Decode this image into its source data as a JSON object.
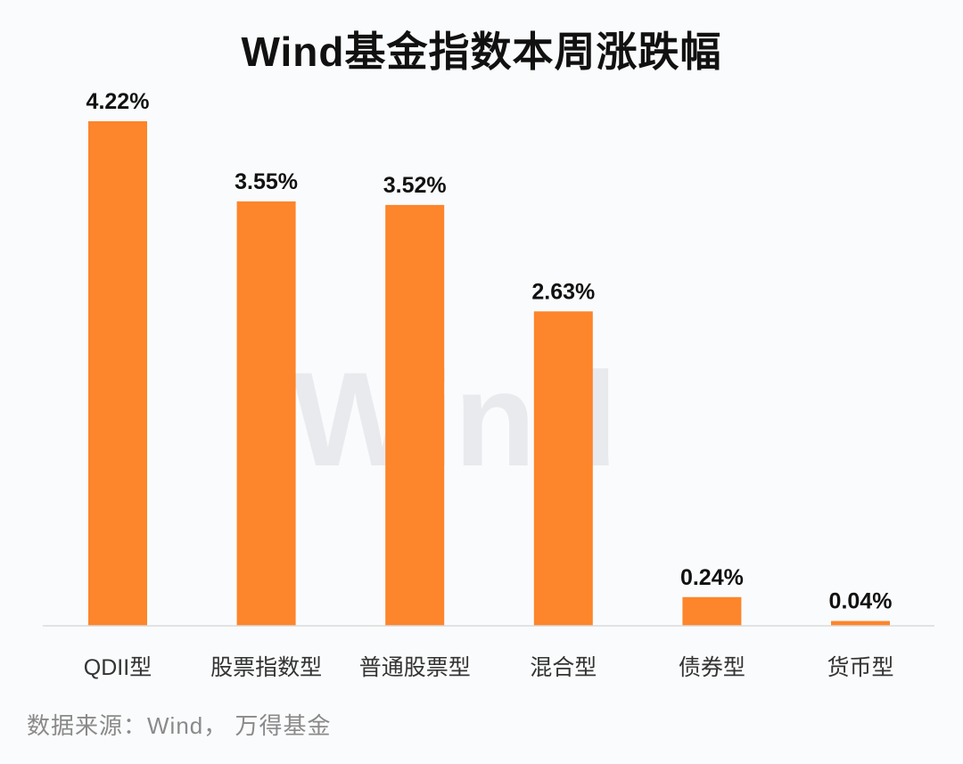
{
  "chart_data": {
    "type": "bar",
    "title": "Wind基金指数本周涨跌幅",
    "categories": [
      "QDII型",
      "股票指数型",
      "普通股票型",
      "混合型",
      "债券型",
      "货币型"
    ],
    "values": [
      4.22,
      3.55,
      3.52,
      2.63,
      0.24,
      0.04
    ],
    "data_labels": [
      "4.22%",
      "3.55%",
      "3.52%",
      "2.63%",
      "0.24%",
      "0.04%"
    ],
    "unit": "%",
    "xlabel": "",
    "ylabel": "",
    "ylim": [
      0,
      4.22
    ],
    "grid": false,
    "legend": "none",
    "bar_color": "#fd852b",
    "axis_color": "#d9d9d9",
    "watermark": "Wind",
    "source": "数据来源：Wind， 万得基金"
  }
}
